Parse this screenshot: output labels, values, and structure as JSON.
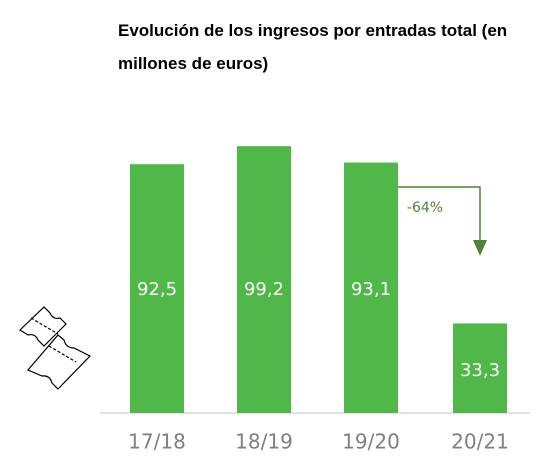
{
  "chart_data": {
    "type": "bar",
    "title": "Evolución de los ingresos por entradas total (en millones de euros)",
    "categories": [
      "17/18",
      "18/19",
      "19/20",
      "20/21"
    ],
    "values": [
      92.5,
      99.2,
      93.1,
      33.3
    ],
    "value_labels": [
      "92,5",
      "99,2",
      "93,1",
      "33,3"
    ],
    "color": "#50b848",
    "annotation": "-64%"
  }
}
